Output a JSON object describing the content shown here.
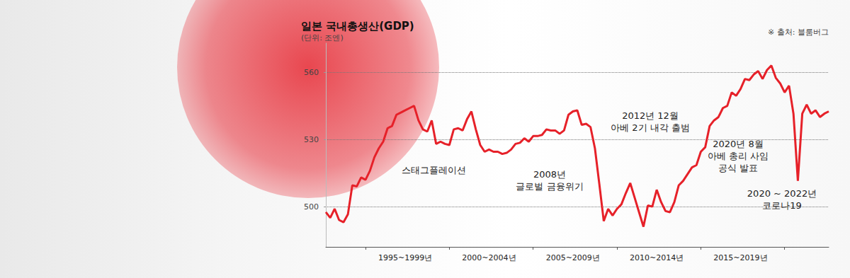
{
  "chart_data": {
    "type": "line",
    "title": "일본 국내총생산(GDP)",
    "subtitle": "(단위: 조엔)",
    "source": "※ 출처: 블룸버그",
    "annotations": [
      "스태그플레이션",
      "2008년\n글로벌 금융위기",
      "2012년 12월\n아베 2기 내각 출범",
      "2020년 8월\n아베 총리 사임\n공식 발표",
      "2020 ~ 2022년\n코로나19"
    ],
    "categories": [
      null,
      null,
      null,
      null,
      null,
      null,
      null,
      null,
      null,
      null,
      null,
      null,
      null,
      null,
      null,
      null,
      null,
      null,
      "1995~1999년",
      null,
      null,
      null,
      null,
      null,
      null,
      null,
      null,
      null,
      null,
      null,
      null,
      null,
      null,
      null,
      null,
      null,
      null,
      "2000~2004년",
      null,
      null,
      null,
      null,
      null,
      null,
      null,
      null,
      null,
      null,
      null,
      null,
      null,
      null,
      null,
      null,
      null,
      null,
      "2005~2009년",
      null,
      null,
      null,
      null,
      null,
      null,
      null,
      null,
      null,
      null,
      null,
      null,
      null,
      null,
      null,
      null,
      null,
      null,
      "2010~2014년",
      null,
      null,
      null,
      null,
      null,
      null,
      null,
      null,
      null,
      null,
      null,
      null,
      null,
      null,
      null,
      null,
      null,
      null,
      "2015~2019년",
      null,
      null,
      null,
      null,
      null,
      null,
      null,
      null,
      null,
      null,
      null,
      null,
      null,
      null,
      null,
      null,
      null,
      null,
      null,
      null
    ],
    "values": [
      497.5,
      495,
      499,
      494,
      493,
      496.5,
      509.5,
      509,
      513,
      512,
      516,
      522,
      526,
      529,
      535,
      536,
      541,
      542,
      543,
      544,
      545,
      538.5,
      534.5,
      533.5,
      538.5,
      528,
      529,
      528,
      527.5,
      534.5,
      535,
      534,
      539,
      542.5,
      534.5,
      527.5,
      524.5,
      525.5,
      524.5,
      524.5,
      523.5,
      524,
      525.5,
      528,
      528.5,
      530.5,
      529,
      531.5,
      531.5,
      532,
      534.5,
      534,
      534,
      532.5,
      534,
      541,
      542.5,
      543,
      536.5,
      537,
      535.5,
      526,
      510,
      493.5,
      499,
      496,
      499,
      501,
      506,
      510.5,
      504,
      497.5,
      491,
      500.5,
      500,
      507.5,
      502,
      498,
      497.5,
      502,
      509.5,
      511.5,
      514.5,
      517.5,
      518.5,
      524.5,
      526.5,
      536,
      538.5,
      540,
      544,
      545,
      551,
      549.5,
      552.5,
      557,
      556.5,
      559,
      560.5,
      557,
      561,
      563,
      557.5,
      555,
      551,
      554,
      541.5,
      511.5,
      541.5,
      545.5,
      541.5,
      543,
      540,
      541.5,
      542.5
    ],
    "color": "#e62129",
    "ylim": [
      482,
      573
    ],
    "yticks": [
      500,
      530,
      560
    ],
    "grid": true
  }
}
